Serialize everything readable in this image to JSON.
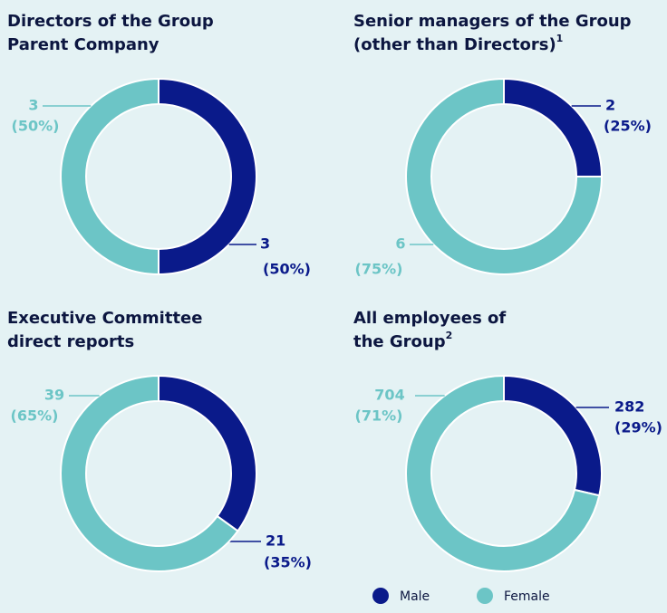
{
  "chart_data": [
    {
      "type": "pie",
      "donut": true,
      "title": [
        "Directors of the Group",
        "Parent Company"
      ],
      "categories": [
        "Male",
        "Female"
      ],
      "colors": [
        "#0a1a8a",
        "#6cc5c6"
      ],
      "values": [
        3,
        3
      ],
      "shares": [
        50,
        50
      ],
      "share_labels": [
        "(50%)",
        "(50%)"
      ]
    },
    {
      "type": "pie",
      "donut": true,
      "title": [
        "Senior managers of the Group",
        "(other than Directors)"
      ],
      "title_note": "1",
      "categories": [
        "Male",
        "Female"
      ],
      "colors": [
        "#0a1a8a",
        "#6cc5c6"
      ],
      "values": [
        2,
        6
      ],
      "shares": [
        25,
        75
      ],
      "share_labels": [
        "(25%)",
        "(75%)"
      ]
    },
    {
      "type": "pie",
      "donut": true,
      "title": [
        "Executive Committee",
        "direct reports"
      ],
      "categories": [
        "Male",
        "Female"
      ],
      "colors": [
        "#0a1a8a",
        "#6cc5c6"
      ],
      "values": [
        21,
        39
      ],
      "shares": [
        35,
        65
      ],
      "share_labels": [
        "(35%)",
        "(65%)"
      ]
    },
    {
      "type": "pie",
      "donut": true,
      "title": [
        "All employees of",
        "the Group"
      ],
      "title_note": "2",
      "categories": [
        "Male",
        "Female"
      ],
      "colors": [
        "#0a1a8a",
        "#6cc5c6"
      ],
      "values": [
        282,
        704
      ],
      "shares": [
        29,
        71
      ],
      "share_labels": [
        "(29%)",
        "(71%)"
      ]
    }
  ]
}
